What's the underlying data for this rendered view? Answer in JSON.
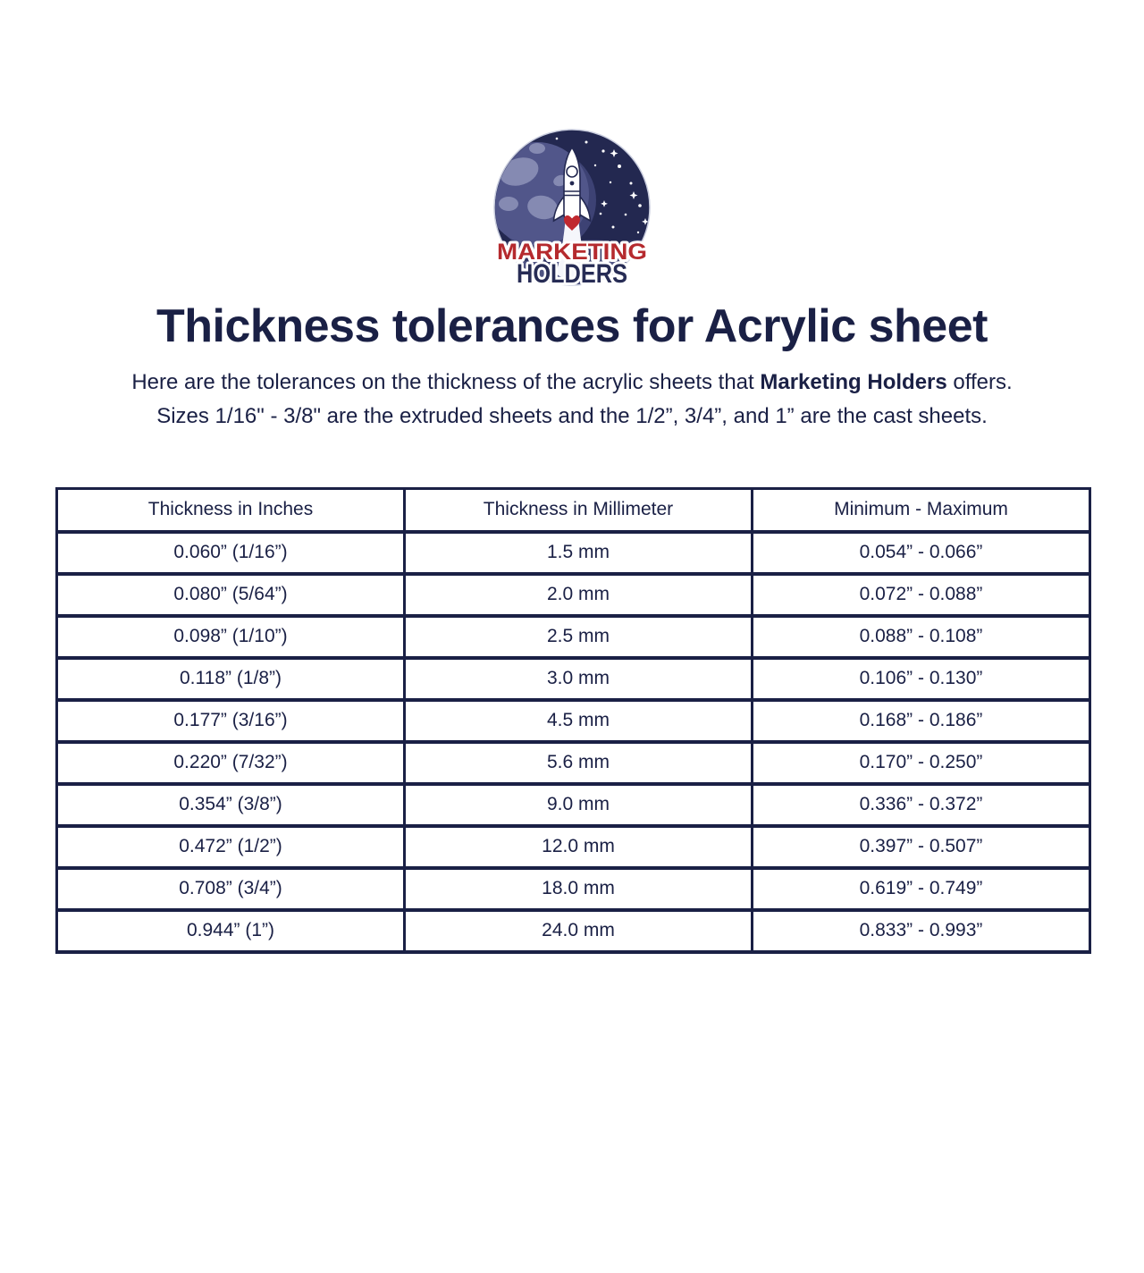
{
  "colors": {
    "navy_text": "#1a2045",
    "table_border": "#1a2045",
    "logo_red": "#b52a2e",
    "logo_navy": "#272c55",
    "badge_background": "#232850",
    "planet_base": "#51568a",
    "planet_continent": "#858ab2",
    "cloud_dark": "#343966",
    "cloud_light": "#4e5382",
    "heart_red": "#c0282f",
    "background": "#ffffff"
  },
  "logo": {
    "line1": "MARKETING",
    "line2": "HOLDERS"
  },
  "header": {
    "title": "Thickness tolerances for Acrylic sheet",
    "description_line1_prefix": "Here are the tolerances on the thickness of the acrylic sheets that ",
    "description_line1_bold": "Marketing Holders",
    "description_line1_suffix": " offers.",
    "description_line2": "Sizes 1/16\" - 3/8\" are the extruded sheets and the 1/2”, 3/4”, and 1” are the cast sheets."
  },
  "table": {
    "headers": [
      "Thickness in Inches",
      "Thickness in Millimeter",
      "Minimum - Maximum"
    ],
    "rows": [
      [
        "0.060” (1/16”)",
        "1.5 mm",
        "0.054” - 0.066”"
      ],
      [
        "0.080” (5/64”)",
        "2.0 mm",
        "0.072” - 0.088”"
      ],
      [
        "0.098” (1/10”)",
        "2.5 mm",
        "0.088” - 0.108”"
      ],
      [
        "0.118” (1/8”)",
        "3.0 mm",
        "0.106” - 0.130”"
      ],
      [
        "0.177” (3/16”)",
        "4.5 mm",
        "0.168” - 0.186”"
      ],
      [
        "0.220” (7/32”)",
        "5.6 mm",
        "0.170” - 0.250”"
      ],
      [
        "0.354” (3/8”)",
        "9.0 mm",
        "0.336” - 0.372”"
      ],
      [
        "0.472” (1/2”)",
        "12.0 mm",
        "0.397” - 0.507”"
      ],
      [
        "0.708” (3/4”)",
        "18.0 mm",
        "0.619” - 0.749”"
      ],
      [
        "0.944” (1”)",
        "24.0 mm",
        "0.833” - 0.993”"
      ]
    ]
  }
}
